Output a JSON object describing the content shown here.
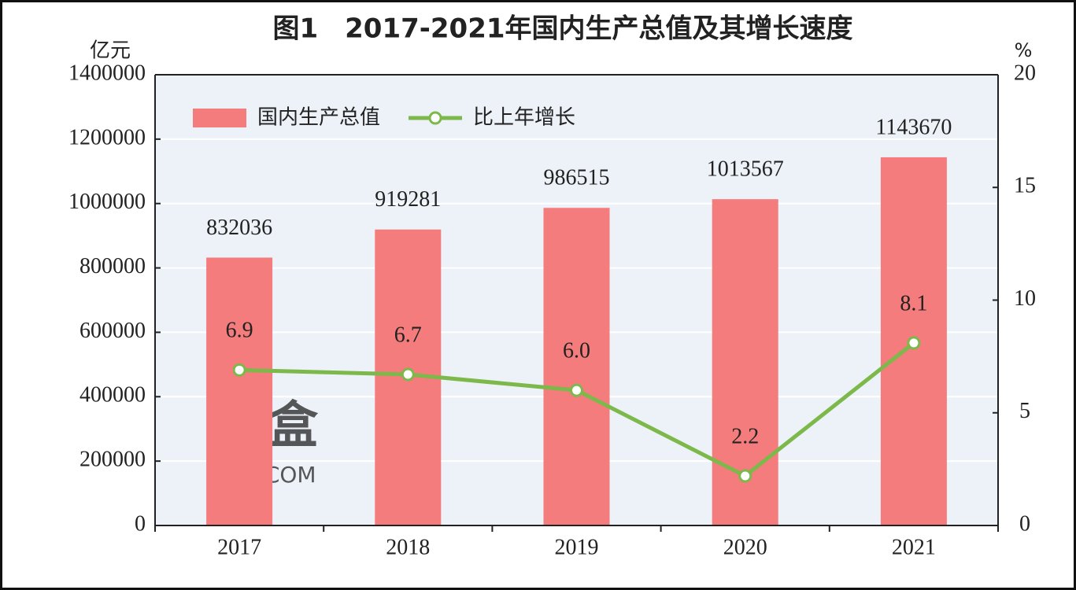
{
  "chart_data": {
    "type": "bar",
    "title": "图1　2017-2021年国内生产总值及其增长速度",
    "y_label": "亿元",
    "y2_label": "%",
    "categories": [
      "2017",
      "2018",
      "2019",
      "2020",
      "2021"
    ],
    "series": [
      {
        "name": "国内生产总值",
        "type": "bar",
        "color": "#f47c7c",
        "values": [
          832036,
          919281,
          986515,
          1013567,
          1143670
        ]
      },
      {
        "name": "比上年增长",
        "type": "line",
        "axis": "y2",
        "color": "#7cb84a",
        "values": [
          6.9,
          6.7,
          6.0,
          2.2,
          8.1
        ],
        "value_labels": [
          "6.9",
          "6.7",
          "6.0",
          "2.2",
          "8.1"
        ]
      }
    ],
    "ylim": [
      0,
      1400000
    ],
    "yticks": [
      0,
      200000,
      400000,
      600000,
      800000,
      1000000,
      1200000,
      1400000
    ],
    "y2lim": [
      0,
      20
    ],
    "y2ticks": [
      0,
      5,
      10,
      15,
      20
    ],
    "grid": true,
    "legend": "top-left",
    "watermark": [
      "象盒",
      "XHJ.COM"
    ]
  }
}
